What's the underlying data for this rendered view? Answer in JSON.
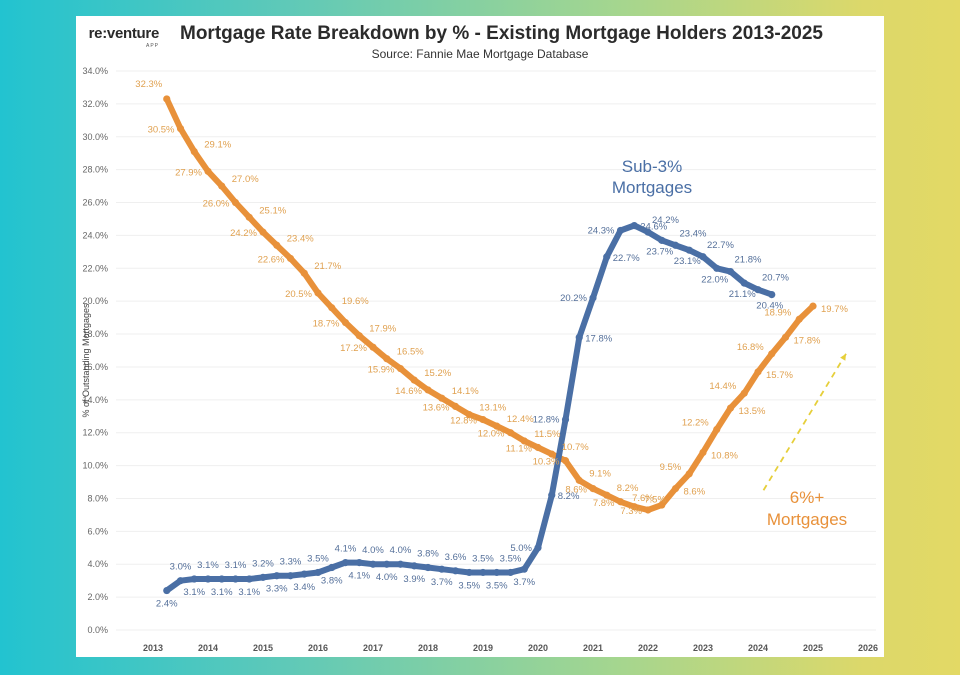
{
  "header": {
    "logo_text": "re:venture",
    "logo_sub": "APP",
    "title": "Mortgage Rate Breakdown by % - Existing Mortgage Holders 2013-2025",
    "subtitle": "Source: Fannie Mae Mortgage Database"
  },
  "chart_data": {
    "type": "line",
    "title": "Mortgage Rate Breakdown by % - Existing Mortgage Holders 2013-2025",
    "subtitle": "Source: Fannie Mae Mortgage Database",
    "xlabel": "",
    "ylabel": "% of Outstanding Mortgages",
    "xlim": [
      2013,
      2026
    ],
    "ylim": [
      0,
      34
    ],
    "grid": true,
    "x_ticks": [
      "2013",
      "2014",
      "2015",
      "2016",
      "2017",
      "2018",
      "2019",
      "2020",
      "2021",
      "2022",
      "2023",
      "2024",
      "2025",
      "2026"
    ],
    "y_ticks": [
      "0.0%",
      "2.0%",
      "4.0%",
      "6.0%",
      "8.0%",
      "10.0%",
      "12.0%",
      "14.0%",
      "16.0%",
      "18.0%",
      "20.0%",
      "22.0%",
      "24.0%",
      "26.0%",
      "28.0%",
      "30.0%",
      "32.0%",
      "34.0%"
    ],
    "series": [
      {
        "name": "6%+ Mortgages",
        "color": "#e8913a",
        "label_color": "#e0a150",
        "x_start": 2013.25,
        "x_step": 0.25,
        "values": [
          32.3,
          30.5,
          29.1,
          27.9,
          27.0,
          26.0,
          25.1,
          24.2,
          23.4,
          22.6,
          21.7,
          20.5,
          19.6,
          18.7,
          17.9,
          17.2,
          16.5,
          15.9,
          15.2,
          14.6,
          14.1,
          13.6,
          13.1,
          12.8,
          12.4,
          12.0,
          11.5,
          11.1,
          10.7,
          10.3,
          9.1,
          8.6,
          8.2,
          7.8,
          7.5,
          7.3,
          7.6,
          8.6,
          9.5,
          10.8,
          12.2,
          13.5,
          14.4,
          15.7,
          16.8,
          17.8,
          18.9,
          19.7
        ]
      },
      {
        "name": "Sub-3% Mortgages",
        "color": "#4a6fa5",
        "label_color": "#55709a",
        "x_start": 2013.25,
        "x_step": 0.25,
        "values": [
          2.4,
          3.0,
          3.1,
          3.1,
          3.1,
          3.1,
          3.1,
          3.2,
          3.3,
          3.3,
          3.4,
          3.5,
          3.8,
          4.1,
          4.1,
          4.0,
          4.0,
          4.0,
          3.9,
          3.8,
          3.7,
          3.6,
          3.5,
          3.5,
          3.5,
          3.5,
          3.7,
          5.0,
          8.2,
          12.8,
          17.8,
          20.2,
          22.7,
          24.3,
          24.6,
          24.2,
          23.7,
          23.4,
          23.1,
          22.7,
          22.0,
          21.8,
          21.1,
          20.7,
          20.4
        ]
      }
    ],
    "annotations": [
      {
        "text_line1": "Sub-3%",
        "text_line2": "Mortgages",
        "color": "#4a6fa5",
        "series": "Sub-3% Mortgages"
      },
      {
        "text_line1": "6%+",
        "text_line2": "Mortgages",
        "color": "#e8913a",
        "series": "6%+ Mortgages"
      },
      {
        "type": "dashed-arrow",
        "color": "#e6cf3a",
        "from": [
          2024.1,
          8.5
        ],
        "to": [
          2025.6,
          16.8
        ]
      }
    ]
  }
}
